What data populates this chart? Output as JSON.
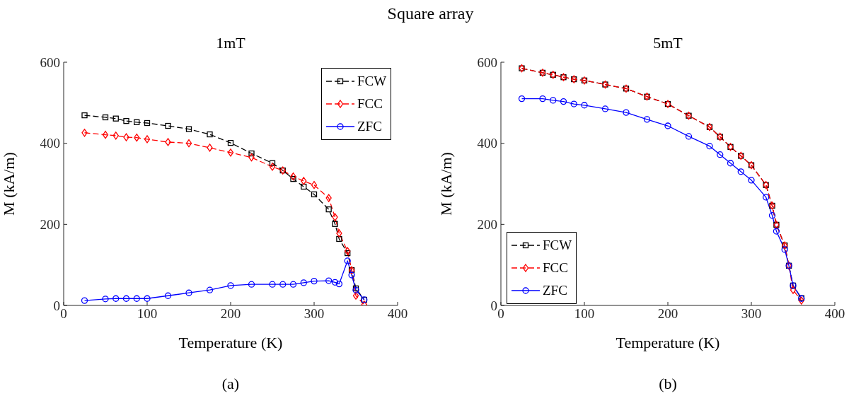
{
  "chart_data": [
    {
      "type": "line",
      "title": "1mT",
      "xlabel": "Temperature (K)",
      "ylabel": "M (kA/m)",
      "annotations": [
        "Square array",
        "(a)"
      ],
      "x": [
        25,
        50,
        62.5,
        75,
        87.5,
        100,
        125,
        150,
        175,
        200,
        225,
        250,
        262.5,
        275,
        287.5,
        300,
        317.5,
        325,
        330,
        340,
        345,
        350,
        360
      ],
      "series": [
        {
          "name": "FCW",
          "color": "#000000",
          "marker": "square",
          "line_style": "dashed",
          "values": [
            469,
            464,
            461,
            455,
            452,
            450,
            443,
            435,
            422,
            401,
            375,
            351,
            333,
            312,
            293,
            274,
            237,
            201,
            164,
            129,
            87,
            42,
            14
          ]
        },
        {
          "name": "FCC",
          "color": "#ff0000",
          "marker": "diamond",
          "line_style": "dashed",
          "values": [
            426,
            421,
            419,
            415,
            414,
            410,
            403,
            400,
            389,
            377,
            365,
            342,
            333,
            318,
            307,
            297,
            265,
            218,
            178,
            134,
            87,
            24,
            2
          ]
        },
        {
          "name": "ZFC",
          "color": "#0000ff",
          "marker": "circle",
          "line_style": "solid",
          "values": [
            12,
            16,
            17,
            17,
            17,
            17,
            24,
            31,
            38,
            49,
            52,
            52,
            52,
            52,
            56,
            60,
            61,
            57,
            53,
            110,
            75,
            38,
            14
          ]
        }
      ],
      "xlim": [
        0,
        400
      ],
      "xticks": [
        0,
        100,
        200,
        300,
        400
      ],
      "ylim": [
        0,
        600
      ],
      "yticks": [
        0,
        200,
        400,
        600
      ],
      "grid": false,
      "legend": "top right"
    },
    {
      "type": "line",
      "title": "5mT",
      "xlabel": "Temperature (K)",
      "ylabel": "M (kA/m)",
      "annotations": [
        "(b)"
      ],
      "x": [
        25,
        50,
        62.5,
        75,
        87.5,
        100,
        125,
        150,
        175,
        200,
        225,
        250,
        262.5,
        275,
        287.5,
        300,
        317.5,
        325,
        330,
        340,
        345,
        350,
        360
      ],
      "series": [
        {
          "name": "FCW",
          "color": "#000000",
          "marker": "square",
          "line_style": "dashed",
          "values": [
            585,
            574,
            569,
            563,
            558,
            555,
            545,
            535,
            515,
            497,
            468,
            440,
            416,
            391,
            369,
            346,
            297,
            246,
            199,
            148,
            98,
            49,
            18
          ]
        },
        {
          "name": "FCC",
          "color": "#ff0000",
          "marker": "diamond",
          "line_style": "dashed",
          "values": [
            585,
            574,
            569,
            563,
            558,
            555,
            545,
            535,
            515,
            497,
            468,
            440,
            416,
            391,
            369,
            346,
            297,
            246,
            199,
            148,
            98,
            38,
            12
          ]
        },
        {
          "name": "ZFC",
          "color": "#0000ff",
          "marker": "circle",
          "line_style": "solid",
          "values": [
            510,
            510,
            506,
            503,
            497,
            494,
            485,
            476,
            459,
            443,
            417,
            393,
            372,
            351,
            330,
            309,
            267,
            222,
            183,
            138,
            98,
            49,
            17
          ]
        }
      ],
      "xlim": [
        0,
        400
      ],
      "xticks": [
        0,
        100,
        200,
        300,
        400
      ],
      "ylim": [
        0,
        600
      ],
      "yticks": [
        0,
        200,
        400,
        600
      ],
      "grid": false,
      "legend": "bottom left"
    }
  ]
}
